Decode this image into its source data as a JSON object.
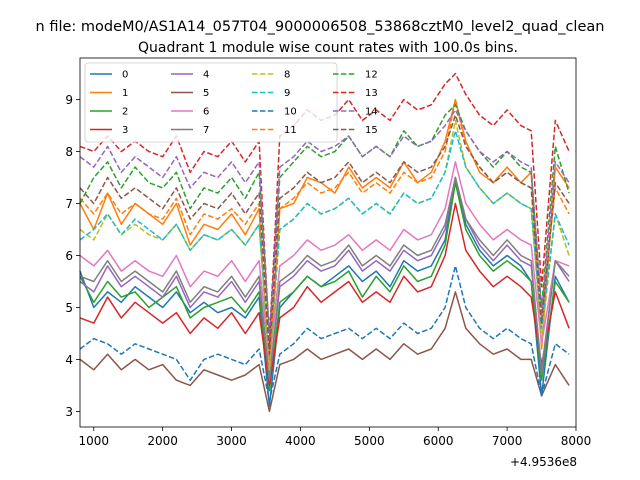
{
  "figure": {
    "suptitle": "n file: modeM0/AS1A14_057T04_9000006508_53868cztM0_level2_quad_clean"
  },
  "chart_data": {
    "type": "line",
    "title": "Quadrant 1 module wise count rates with 100.0s bins.",
    "xlabel": "",
    "ylabel": "",
    "x_offset_label": "+4.9536e8",
    "xlim": [
      800,
      8000
    ],
    "ylim": [
      2.7,
      9.8
    ],
    "xticks": [
      1000,
      2000,
      3000,
      4000,
      5000,
      6000,
      7000,
      8000
    ],
    "yticks": [
      3,
      4,
      5,
      6,
      7,
      8,
      9
    ],
    "grid": false,
    "legend": {
      "placement": "top-left",
      "columns": 4
    },
    "x": [
      800,
      1000,
      1200,
      1400,
      1600,
      1800,
      2000,
      2200,
      2400,
      2600,
      2800,
      3000,
      3200,
      3400,
      3550,
      3700,
      3900,
      4100,
      4300,
      4500,
      4700,
      4900,
      5100,
      5300,
      5500,
      5700,
      5900,
      6100,
      6250,
      6400,
      6600,
      6800,
      7000,
      7200,
      7350,
      7500,
      7700,
      7900
    ],
    "series": [
      {
        "name": "0",
        "color": "#1f77b4",
        "dash": "solid",
        "values": [
          5.7,
          5.0,
          5.3,
          5.1,
          5.4,
          5.2,
          5.0,
          5.3,
          4.9,
          5.1,
          4.9,
          5.0,
          4.8,
          5.2,
          3.1,
          5.0,
          5.3,
          5.6,
          5.4,
          5.6,
          5.8,
          5.5,
          5.7,
          5.4,
          5.9,
          5.7,
          5.8,
          6.3,
          7.5,
          6.6,
          6.1,
          5.8,
          6.0,
          5.8,
          5.5,
          3.3,
          5.6,
          5.1
        ]
      },
      {
        "name": "1",
        "color": "#ff7f0e",
        "dash": "solid",
        "values": [
          7.0,
          6.5,
          7.2,
          6.6,
          7.0,
          6.8,
          6.6,
          7.0,
          6.2,
          6.6,
          6.5,
          6.8,
          6.4,
          6.9,
          3.7,
          6.9,
          7.0,
          7.5,
          7.4,
          7.2,
          7.7,
          7.3,
          7.5,
          7.3,
          7.8,
          7.4,
          7.6,
          8.2,
          9.0,
          8.2,
          7.6,
          7.4,
          7.7,
          7.4,
          7.6,
          4.2,
          7.7,
          7.3
        ]
      },
      {
        "name": "2",
        "color": "#2ca02c",
        "dash": "solid",
        "values": [
          5.6,
          5.1,
          5.5,
          5.2,
          5.3,
          5.0,
          5.2,
          5.4,
          4.8,
          5.0,
          5.1,
          5.2,
          4.9,
          5.3,
          3.4,
          5.1,
          5.3,
          5.6,
          5.4,
          5.5,
          5.7,
          5.2,
          5.6,
          5.3,
          5.8,
          5.5,
          5.6,
          6.2,
          7.4,
          6.5,
          6.0,
          5.7,
          5.9,
          5.7,
          5.5,
          3.6,
          5.5,
          5.1
        ]
      },
      {
        "name": "3",
        "color": "#d62728",
        "dash": "solid",
        "values": [
          4.8,
          4.7,
          5.2,
          4.8,
          5.1,
          4.9,
          4.7,
          4.9,
          4.5,
          4.8,
          4.6,
          4.9,
          4.5,
          4.9,
          3.5,
          4.8,
          5.0,
          5.4,
          5.1,
          5.3,
          5.5,
          5.1,
          5.3,
          5.1,
          5.6,
          5.3,
          5.4,
          6.0,
          7.0,
          6.1,
          5.7,
          5.4,
          5.6,
          5.4,
          5.2,
          3.9,
          5.3,
          4.6
        ]
      },
      {
        "name": "4",
        "color": "#9467bd",
        "dash": "solid",
        "values": [
          5.5,
          5.3,
          5.8,
          5.4,
          5.6,
          5.4,
          5.2,
          5.6,
          5.0,
          5.3,
          5.2,
          5.5,
          5.1,
          5.5,
          3.6,
          5.4,
          5.6,
          5.9,
          5.7,
          5.8,
          6.1,
          5.7,
          5.9,
          5.7,
          6.1,
          5.9,
          6.0,
          6.5,
          7.5,
          6.7,
          6.2,
          5.9,
          6.2,
          5.9,
          5.8,
          3.8,
          5.9,
          5.5
        ]
      },
      {
        "name": "5",
        "color": "#8c564b",
        "dash": "solid",
        "values": [
          4.0,
          3.8,
          4.1,
          3.8,
          4.0,
          3.8,
          3.9,
          3.6,
          3.5,
          3.8,
          3.7,
          3.6,
          3.7,
          3.9,
          3.0,
          3.9,
          4.0,
          4.2,
          4.0,
          4.1,
          4.2,
          4.0,
          4.2,
          4.0,
          4.3,
          4.1,
          4.2,
          4.6,
          5.3,
          4.6,
          4.3,
          4.1,
          4.2,
          4.0,
          4.0,
          3.3,
          3.9,
          3.5
        ]
      },
      {
        "name": "6",
        "color": "#e377c2",
        "dash": "solid",
        "values": [
          6.0,
          5.8,
          6.1,
          5.7,
          5.9,
          5.7,
          5.6,
          6.0,
          5.4,
          5.7,
          5.6,
          5.9,
          5.5,
          5.9,
          3.9,
          5.8,
          6.0,
          6.3,
          6.1,
          6.2,
          6.4,
          6.1,
          6.3,
          6.1,
          6.5,
          6.3,
          6.4,
          6.9,
          7.8,
          7.0,
          6.6,
          6.3,
          6.5,
          6.3,
          6.2,
          4.3,
          5.9,
          5.8
        ]
      },
      {
        "name": "7",
        "color": "#7f7f7f",
        "dash": "solid",
        "values": [
          5.6,
          5.5,
          5.9,
          5.5,
          5.7,
          5.5,
          5.3,
          5.7,
          5.1,
          5.4,
          5.3,
          5.6,
          5.2,
          5.6,
          3.6,
          5.5,
          5.7,
          6.0,
          5.8,
          5.9,
          6.2,
          5.8,
          6.0,
          5.8,
          6.2,
          6.0,
          6.1,
          6.6,
          7.5,
          6.7,
          6.3,
          6.0,
          6.3,
          6.0,
          5.9,
          3.7,
          5.9,
          5.6
        ]
      },
      {
        "name": "8",
        "color": "#bcbd22",
        "dash": "dashed",
        "values": [
          6.5,
          6.3,
          6.8,
          6.4,
          6.6,
          6.4,
          6.3,
          6.6,
          6.1,
          6.4,
          6.3,
          6.5,
          6.2,
          6.6,
          3.8,
          6.5,
          6.7,
          7.0,
          6.8,
          6.9,
          7.1,
          6.8,
          7.0,
          6.8,
          7.2,
          7.0,
          7.1,
          7.6,
          8.6,
          7.7,
          7.3,
          7.0,
          7.2,
          7.0,
          6.9,
          4.4,
          6.8,
          6.0
        ]
      },
      {
        "name": "9",
        "color": "#17becf",
        "dash": "dashed",
        "values": [
          6.3,
          6.5,
          6.8,
          6.4,
          6.7,
          6.5,
          6.3,
          6.6,
          6.1,
          6.4,
          6.3,
          6.5,
          6.2,
          6.6,
          4.0,
          6.5,
          6.7,
          7.0,
          6.8,
          6.9,
          7.1,
          6.8,
          7.0,
          6.8,
          7.2,
          7.0,
          7.1,
          7.6,
          8.4,
          7.7,
          7.3,
          7.0,
          7.2,
          7.0,
          6.9,
          4.6,
          6.8,
          6.2
        ]
      },
      {
        "name": "10",
        "color": "#1f77b4",
        "dash": "dashed",
        "values": [
          4.2,
          4.4,
          4.3,
          4.1,
          4.3,
          4.2,
          4.1,
          4.0,
          3.6,
          4.0,
          4.1,
          4.0,
          3.9,
          4.2,
          3.2,
          4.1,
          4.3,
          4.6,
          4.4,
          4.5,
          4.6,
          4.4,
          4.6,
          4.4,
          4.7,
          4.5,
          4.6,
          5.0,
          5.8,
          5.0,
          4.6,
          4.4,
          4.6,
          4.4,
          4.3,
          3.3,
          4.3,
          4.1
        ]
      },
      {
        "name": "11",
        "color": "#ff7f0e",
        "dash": "dashed",
        "values": [
          7.1,
          6.8,
          7.2,
          6.8,
          7.0,
          6.8,
          6.7,
          7.1,
          6.4,
          6.8,
          6.7,
          6.9,
          6.6,
          7.0,
          4.0,
          6.9,
          7.1,
          7.4,
          7.2,
          7.3,
          7.6,
          7.2,
          7.4,
          7.2,
          7.6,
          7.4,
          7.5,
          8.0,
          9.0,
          8.1,
          7.7,
          7.4,
          7.6,
          7.4,
          7.3,
          4.8,
          7.3,
          6.8
        ]
      },
      {
        "name": "12",
        "color": "#2ca02c",
        "dash": "dashed",
        "values": [
          7.0,
          7.5,
          7.8,
          7.3,
          7.7,
          7.4,
          7.3,
          7.6,
          6.9,
          7.3,
          7.2,
          7.5,
          7.1,
          7.6,
          4.5,
          7.5,
          7.8,
          8.1,
          7.9,
          8.0,
          8.3,
          7.9,
          8.1,
          7.9,
          8.4,
          8.1,
          8.2,
          8.7,
          8.9,
          8.4,
          8.0,
          7.7,
          8.0,
          7.7,
          7.6,
          5.0,
          8.1,
          7.2
        ]
      },
      {
        "name": "13",
        "color": "#d62728",
        "dash": "dashed",
        "values": [
          8.1,
          8.0,
          8.3,
          8.0,
          8.2,
          8.0,
          7.9,
          8.3,
          7.6,
          8.0,
          7.9,
          8.2,
          7.8,
          8.2,
          4.3,
          8.3,
          8.5,
          8.8,
          8.6,
          8.7,
          9.0,
          8.6,
          8.8,
          8.6,
          9.0,
          8.8,
          8.9,
          9.3,
          9.5,
          9.1,
          8.7,
          8.5,
          8.8,
          8.5,
          8.4,
          5.4,
          8.6,
          8.0
        ]
      },
      {
        "name": "14",
        "color": "#9467bd",
        "dash": "dashed",
        "values": [
          7.9,
          7.7,
          8.1,
          7.6,
          7.9,
          7.7,
          7.5,
          7.9,
          7.3,
          7.6,
          7.5,
          7.8,
          7.4,
          7.8,
          4.4,
          7.7,
          7.9,
          8.2,
          8.0,
          8.1,
          8.3,
          7.9,
          8.1,
          7.9,
          8.3,
          8.1,
          8.2,
          8.5,
          8.8,
          8.4,
          8.0,
          7.8,
          8.0,
          7.8,
          7.7,
          4.9,
          7.8,
          7.4
        ]
      },
      {
        "name": "15",
        "color": "#8c564b",
        "dash": "dashed",
        "values": [
          7.3,
          7.0,
          7.5,
          7.1,
          7.3,
          7.1,
          6.9,
          7.3,
          6.7,
          7.0,
          6.9,
          7.2,
          6.8,
          7.2,
          4.1,
          7.1,
          7.3,
          7.6,
          7.4,
          7.5,
          7.8,
          7.4,
          7.6,
          7.4,
          7.8,
          7.6,
          7.7,
          8.1,
          8.7,
          8.1,
          7.7,
          7.4,
          7.6,
          7.4,
          7.3,
          4.7,
          7.4,
          7.0
        ]
      }
    ]
  }
}
